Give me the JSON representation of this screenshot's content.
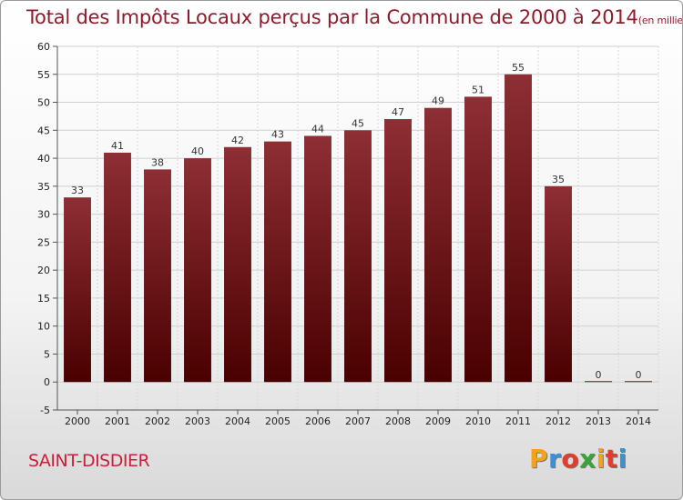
{
  "header": {
    "title": "Total des Impôts Locaux perçus par la Commune de 2000 à 2014",
    "unit": "(en milliers d'€)"
  },
  "footer": {
    "commune": "SAINT-DISDIER",
    "logo_letters": [
      "P",
      "r",
      "o",
      "x",
      "i",
      "t",
      "i"
    ],
    "logo_colors": [
      "#f2a31a",
      "#3c8fd8",
      "#e63a2e",
      "#3aa43a",
      "#f2a31a",
      "#e63a2e",
      "#3c8fd8"
    ]
  },
  "chart_data": {
    "type": "bar",
    "title": "Total des Impôts Locaux perçus par la Commune de 2000 à 2014",
    "categories": [
      "2000",
      "2001",
      "2002",
      "2003",
      "2004",
      "2005",
      "2006",
      "2007",
      "2008",
      "2009",
      "2010",
      "2011",
      "2012",
      "2013",
      "2014"
    ],
    "values": [
      33,
      41,
      38,
      40,
      42,
      43,
      44,
      45,
      47,
      49,
      51,
      55,
      35,
      0,
      0
    ],
    "ylim": [
      -5,
      60
    ],
    "yticks": [
      -5,
      0,
      5,
      10,
      15,
      20,
      25,
      30,
      35,
      40,
      45,
      50,
      55,
      60
    ],
    "xlabel": "",
    "ylabel": "",
    "grid": true,
    "bar_color_top": "#8e2e35",
    "bar_color_bottom": "#4a0000"
  }
}
